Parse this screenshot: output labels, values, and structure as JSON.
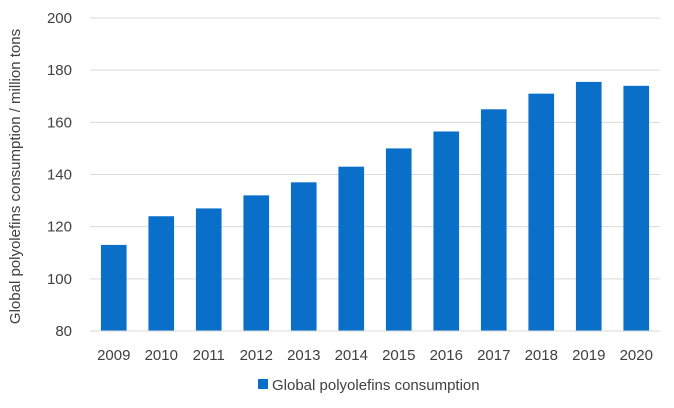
{
  "chart_data": {
    "type": "bar",
    "title": "",
    "xlabel": "",
    "ylabel": "Global polyolefins consumption / million tons",
    "ylim": [
      80,
      200
    ],
    "yticks": [
      80,
      100,
      120,
      140,
      160,
      180,
      200
    ],
    "grid": true,
    "legend_position": "bottom",
    "categories": [
      "2009",
      "2010",
      "2011",
      "2012",
      "2013",
      "2014",
      "2015",
      "2016",
      "2017",
      "2018",
      "2019",
      "2020"
    ],
    "series": [
      {
        "name": "Global polyolefins consumption",
        "color": "#0a6fc8",
        "values": [
          113,
          124,
          127,
          132,
          137,
          143,
          150,
          156.5,
          165,
          171,
          175.5,
          174
        ]
      }
    ]
  }
}
